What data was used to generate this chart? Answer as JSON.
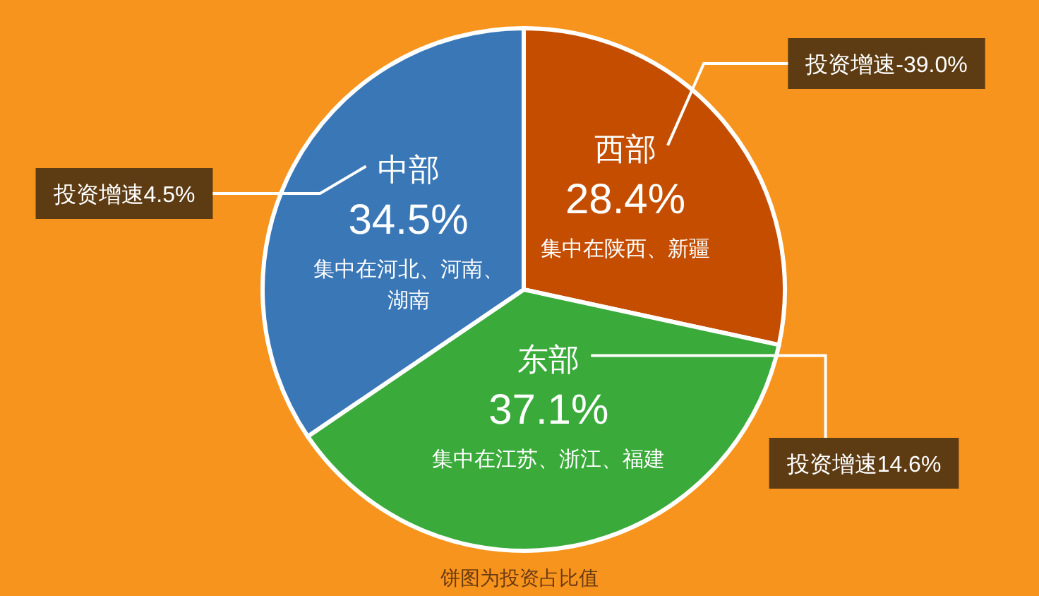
{
  "chart_data": {
    "type": "pie",
    "categories": [
      "西部",
      "东部",
      "中部"
    ],
    "values": [
      28.4,
      37.1,
      34.5
    ],
    "colors": [
      "#c44d00",
      "#3aaa3a",
      "#3a77b7"
    ],
    "value_labels": [
      "28.4%",
      "37.1%",
      "34.5%"
    ],
    "annotations": [
      {
        "text": "集中在陕西、新疆",
        "x": "西部"
      },
      {
        "text": "集中在江苏、浙江、福建",
        "x": "东部"
      },
      {
        "text": "集中在河北、河南、湖南",
        "x": "中部"
      },
      {
        "text": "投资增速-39.0%",
        "x": "西部"
      },
      {
        "text": "投资增速14.6%",
        "x": "东部"
      },
      {
        "text": "投资增速4.5%",
        "x": "中部"
      },
      "饼图为投资占比值"
    ]
  }
}
